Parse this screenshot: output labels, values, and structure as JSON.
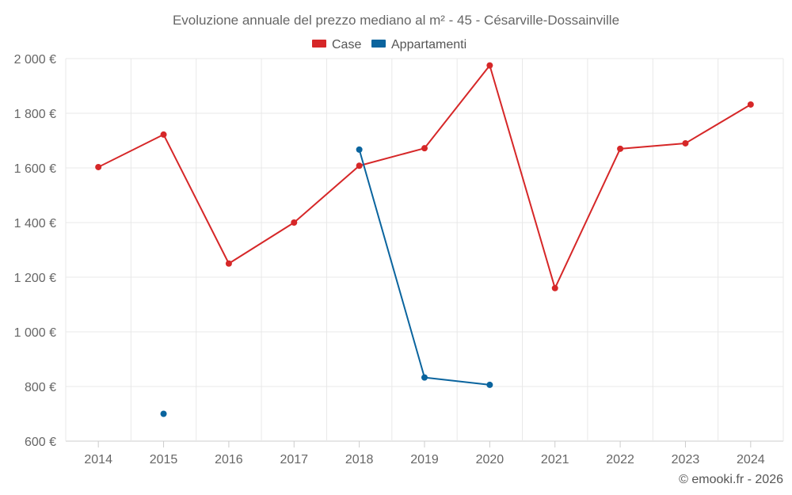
{
  "chart_data": {
    "type": "line",
    "title": "Evoluzione annuale del prezzo mediano al m² - 45 - Césarville-Dossainville",
    "categories": [
      "2014",
      "2015",
      "2016",
      "2017",
      "2018",
      "2019",
      "2020",
      "2021",
      "2022",
      "2023",
      "2024"
    ],
    "y_ticks": [
      600,
      800,
      1000,
      1200,
      1400,
      1600,
      1800,
      2000
    ],
    "y_tick_labels": [
      "600 €",
      "800 €",
      "1 000 €",
      "1 200 €",
      "1 400 €",
      "1 600 €",
      "1 800 €",
      "2 000 €"
    ],
    "ylim": [
      600,
      2000
    ],
    "grid": true,
    "legend_position": "top-center",
    "series": [
      {
        "name": "Case",
        "color": "#d62728",
        "values": [
          1603,
          1722,
          1250,
          1400,
          1608,
          1672,
          1975,
          1160,
          1670,
          1690,
          1832
        ]
      },
      {
        "name": "Appartamenti",
        "color": "#0a649e",
        "values": [
          null,
          700,
          null,
          null,
          1667,
          833,
          806,
          null,
          null,
          null,
          null
        ]
      }
    ]
  },
  "credit": "© emooki.fr - 2026"
}
